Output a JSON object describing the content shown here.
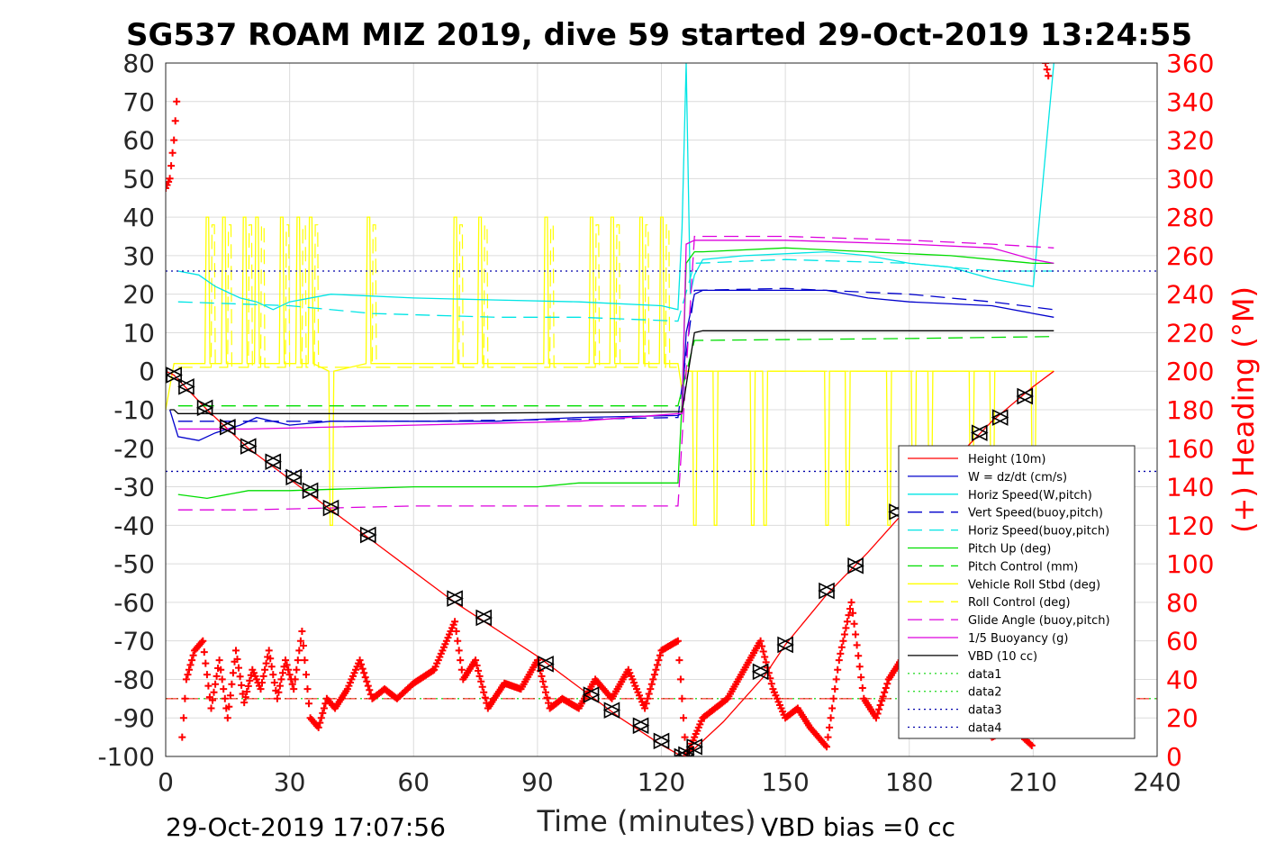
{
  "chart_data": {
    "type": "line",
    "title": "SG537 ROAM MIZ 2019, dive 59 started 29-Oct-2019 13:24:55",
    "xlabel": "Time (minutes)",
    "ylabel_right": "(+) Heading (°M)",
    "xlim": [
      0,
      240
    ],
    "ylim_left": [
      -100,
      80
    ],
    "ylim_right": [
      0,
      360
    ],
    "x_ticks": [
      "0",
      "30",
      "60",
      "90",
      "120",
      "150",
      "180",
      "210",
      "240"
    ],
    "y_ticks_left": [
      "80",
      "70",
      "60",
      "50",
      "40",
      "30",
      "20",
      "10",
      "0",
      "-10",
      "-20",
      "-30",
      "-40",
      "-50",
      "-60",
      "-70",
      "-80",
      "-90",
      "-100"
    ],
    "y_ticks_right": [
      "360",
      "340",
      "320",
      "300",
      "280",
      "260",
      "240",
      "220",
      "200",
      "180",
      "160",
      "140",
      "120",
      "100",
      "80",
      "60",
      "40",
      "20",
      "0"
    ],
    "grid": true,
    "legend_position": "lower-right",
    "footer_left": "29-Oct-2019 17:07:56",
    "footer_right": "VBD bias =0 cc",
    "colors": {
      "red": "#ff0000",
      "blue": "#0000cc",
      "cyan": "#00e5e5",
      "green": "#00dd00",
      "yellow": "#ffff00",
      "magenta": "#dd00dd",
      "black": "#000000",
      "dotgreen": "#33dd33",
      "dotblue": "#0000aa"
    },
    "series": [
      {
        "name": "Height (10m)",
        "color": "red",
        "dash": "solid",
        "x": [
          0,
          2,
          10,
          20,
          30,
          40,
          50,
          60,
          70,
          80,
          90,
          100,
          110,
          120,
          125,
          128,
          135,
          145,
          150,
          160,
          170,
          180,
          190,
          200,
          210,
          215
        ],
        "y": [
          0,
          -1,
          -10,
          -20,
          -28,
          -36,
          -44,
          -52,
          -60,
          -67,
          -74,
          -82,
          -90,
          -97,
          -100,
          -98,
          -91,
          -79,
          -71,
          -58,
          -47,
          -35,
          -24,
          -13,
          -4,
          0
        ]
      },
      {
        "name": "W = dz/dt (cm/s)",
        "color": "blue",
        "dash": "solid",
        "x": [
          1,
          3,
          8,
          12,
          18,
          22,
          30,
          40,
          60,
          80,
          100,
          124,
          125,
          126,
          128,
          130,
          140,
          160,
          170,
          180,
          200,
          210,
          215
        ],
        "y": [
          -10,
          -17,
          -18,
          -16,
          -14,
          -12,
          -14,
          -13,
          -13,
          -13,
          -12,
          -11.5,
          -11,
          10,
          20,
          21,
          21,
          21,
          19,
          18,
          17,
          15,
          14
        ]
      },
      {
        "name": "Horiz Speed(W,pitch)",
        "color": "cyan",
        "dash": "solid",
        "x": [
          3,
          8,
          12,
          18,
          22,
          26,
          30,
          40,
          60,
          80,
          100,
          120,
          124,
          125,
          126,
          127,
          128,
          130,
          140,
          160,
          170,
          180,
          190,
          200,
          210,
          215
        ],
        "y": [
          26,
          25,
          22,
          19,
          18,
          16,
          18,
          20,
          19,
          18.5,
          18,
          17,
          16,
          37,
          80,
          20,
          25,
          29,
          30,
          31,
          30,
          28,
          27,
          24,
          22,
          80
        ]
      },
      {
        "name": "Vert Speed(buoy,pitch)",
        "color": "blue",
        "dash": "dashed",
        "x": [
          3,
          30,
          60,
          100,
          124,
          128,
          150,
          180,
          200,
          215
        ],
        "y": [
          -13,
          -13,
          -13,
          -12.5,
          -12,
          21,
          21.5,
          20,
          18,
          16
        ]
      },
      {
        "name": "Horiz Speed(buoy,pitch)",
        "color": "cyan",
        "dash": "dashed",
        "x": [
          3,
          30,
          50,
          80,
          100,
          124,
          128,
          150,
          180,
          200,
          215
        ],
        "y": [
          18,
          17,
          15,
          14,
          14,
          13,
          28,
          29,
          28,
          26,
          26
        ]
      },
      {
        "name": "Pitch Up (deg)",
        "color": "green",
        "dash": "solid",
        "x": [
          3,
          10,
          20,
          30,
          60,
          90,
          100,
          124,
          125,
          126,
          128,
          130,
          150,
          170,
          190,
          200,
          210,
          215
        ],
        "y": [
          -32,
          -33,
          -31,
          -31,
          -30,
          -30,
          -29,
          -29,
          -8,
          28,
          31,
          31,
          32,
          31,
          30,
          29,
          28,
          28
        ]
      },
      {
        "name": "Pitch Control (mm)",
        "color": "green",
        "dash": "dashed",
        "x": [
          3,
          60,
          100,
          124,
          128,
          180,
          215
        ],
        "y": [
          -9,
          -9,
          -9,
          -9,
          8,
          8.5,
          9
        ]
      },
      {
        "name": "1/5 Buoyancy (g)",
        "color": "magenta",
        "dash": "solid",
        "x": [
          3,
          10,
          20,
          60,
          100,
          124,
          125,
          126,
          128,
          150,
          180,
          200,
          210,
          215
        ],
        "y": [
          -15,
          -15,
          -15,
          -14,
          -13,
          -11,
          -11,
          33,
          34,
          34,
          33,
          32,
          29,
          28
        ]
      },
      {
        "name": "Glide Angle (buoy,pitch)",
        "color": "magenta",
        "dash": "dashed",
        "x": [
          3,
          20,
          60,
          100,
          124,
          128,
          150,
          180,
          200,
          215
        ],
        "y": [
          -36,
          -36,
          -35,
          -35,
          -35,
          35,
          35,
          34,
          33,
          32
        ]
      },
      {
        "name": "VBD (10 cc)",
        "color": "black",
        "dash": "solid",
        "x": [
          1,
          2,
          3,
          60,
          124,
          125,
          128,
          130,
          215
        ],
        "y": [
          -10,
          -10,
          -11,
          -11,
          -10.5,
          -10.5,
          10,
          10.5,
          10.5
        ]
      },
      {
        "name": "data1",
        "color": "dotgreen",
        "dash": "dotted",
        "x": [
          0,
          240
        ],
        "y": [
          -85,
          -85
        ]
      },
      {
        "name": "data2",
        "color": "dotgreen",
        "dash": "dotted",
        "x": [
          0,
          240
        ],
        "y": [
          -85,
          -85
        ]
      },
      {
        "name": "data3",
        "color": "dotblue",
        "dash": "dotted",
        "x": [
          0,
          240
        ],
        "y": [
          26,
          26
        ]
      },
      {
        "name": "data4",
        "color": "dotblue",
        "dash": "dotted",
        "x": [
          0,
          240
        ],
        "y": [
          -26,
          -26
        ]
      }
    ],
    "roll_series": {
      "vehicle_roll_name": "Vehicle Roll Stbd (deg)",
      "roll_control_name": "Roll Control (deg)",
      "baseline_dive": 2,
      "baseline_climb": 0,
      "spike_top": 40,
      "spike_bottom": -40,
      "spikes_up_minutes": [
        10,
        14,
        19,
        22,
        28,
        32,
        35,
        49,
        70,
        76,
        92,
        103,
        108,
        115,
        120
      ],
      "spikes_down_minutes": [
        40,
        128,
        133,
        142,
        145,
        160,
        165,
        175,
        181,
        185,
        195,
        200,
        210
      ]
    },
    "markers": {
      "symbol": "triangles",
      "x": [
        2,
        5,
        9.5,
        15,
        20,
        26,
        31,
        35,
        40,
        49,
        70,
        77,
        92,
        103,
        108,
        115,
        120,
        125,
        126,
        128,
        144,
        150,
        160,
        167,
        177,
        197,
        202,
        208
      ],
      "y": [
        -1,
        -4,
        -9.5,
        -14.5,
        -19.5,
        -23.5,
        -27.5,
        -31,
        -35.5,
        -42.5,
        -59,
        -64,
        -76,
        -84,
        -88,
        -92,
        -96,
        -100,
        -99.5,
        -97.5,
        -78,
        -71,
        -57,
        -50.5,
        -36.5,
        -16,
        -12,
        -6.5
      ]
    },
    "heading": {
      "name": "Heading",
      "marker": "+",
      "axis": "right",
      "reference_deg": 30,
      "x": [
        0,
        1,
        2,
        3,
        4,
        5,
        7,
        9,
        11,
        13,
        15,
        17,
        19,
        21,
        23,
        25,
        27,
        29,
        31,
        33,
        35,
        37,
        39,
        41,
        44,
        47,
        50,
        53,
        56,
        60,
        65,
        70,
        72,
        75,
        78,
        82,
        86,
        90,
        93,
        96,
        100,
        104,
        108,
        112,
        116,
        120,
        124,
        126,
        128,
        130,
        133,
        136,
        140,
        144,
        147,
        150,
        153,
        156,
        160,
        163,
        166,
        169,
        172,
        175,
        178,
        182,
        186,
        190,
        196,
        200,
        205,
        210,
        213,
        214
      ],
      "y": [
        295,
        300,
        320,
        350,
        10,
        40,
        55,
        60,
        25,
        50,
        20,
        55,
        28,
        45,
        35,
        55,
        30,
        50,
        35,
        65,
        20,
        15,
        30,
        25,
        35,
        50,
        30,
        35,
        30,
        38,
        45,
        70,
        40,
        50,
        25,
        38,
        35,
        50,
        25,
        30,
        25,
        40,
        30,
        45,
        25,
        55,
        60,
        0,
        10,
        20,
        25,
        30,
        45,
        60,
        35,
        20,
        25,
        15,
        5,
        50,
        80,
        30,
        20,
        40,
        50,
        15,
        30,
        25,
        20,
        10,
        15,
        5,
        360,
        350
      ]
    }
  }
}
